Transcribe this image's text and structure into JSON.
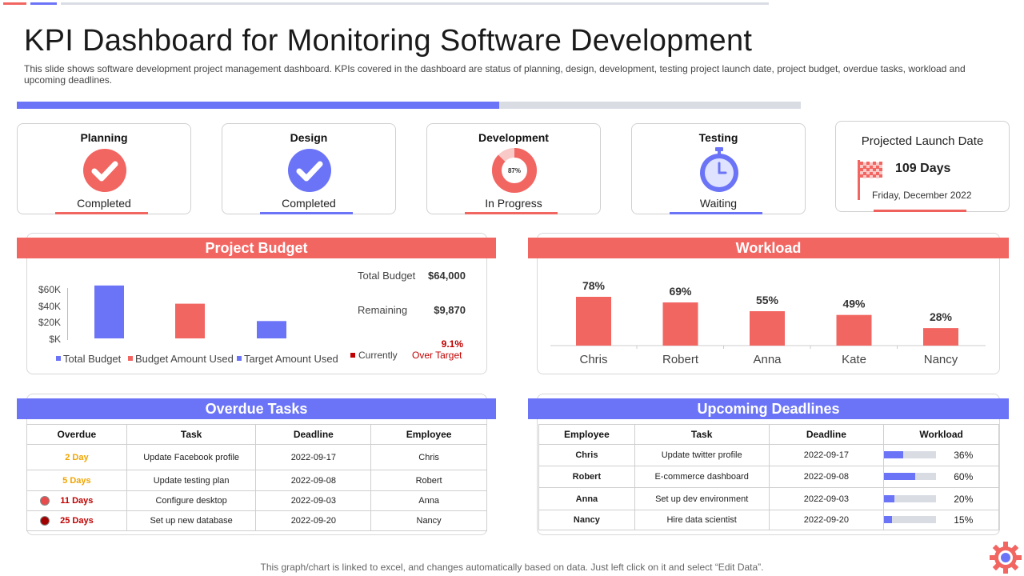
{
  "header": {
    "title": "KPI Dashboard for Monitoring Software Development",
    "subtitle": "This slide shows software development project management dashboard. KPIs covered in the dashboard are status of planning, design, development, testing project launch date, project budget, overdue tasks, workload and upcoming deadlines.",
    "overall_progress_fraction": 0.615
  },
  "status_cards": [
    {
      "label": "Planning",
      "state": "Completed",
      "icon": "check-circle-icon",
      "color": "#f26662"
    },
    {
      "label": "Design",
      "state": "Completed",
      "icon": "check-circle-icon",
      "color": "#6b74f7"
    },
    {
      "label": "Development",
      "state": "In Progress",
      "icon": "donut-progress-icon",
      "color": "#f26662",
      "progress_text": "87%",
      "progress": 0.87
    },
    {
      "label": "Testing",
      "state": "Waiting",
      "icon": "stopwatch-icon",
      "color": "#6b74f7"
    }
  ],
  "launch": {
    "title": "Projected Launch Date",
    "days": "109 Days",
    "date": "Friday, December 2022",
    "icon": "checkered-flag-icon"
  },
  "budget": {
    "title": "Project Budget",
    "axis_ticks": [
      "$60K",
      "$40K",
      "$20K",
      "$K"
    ],
    "total_label": "Total Budget",
    "total_value": "$64,000",
    "remaining_label": "Remaining",
    "remaining_value": "$9,870",
    "over_pct": "9.1%",
    "currently_label": "Currently",
    "over_label": "Over Target",
    "legend": [
      {
        "label": "Total Budget",
        "color": "#6b74f7"
      },
      {
        "label": "Budget Amount Used",
        "color": "#f26662"
      },
      {
        "label": "Target Amount Used",
        "color": "#6b74f7"
      }
    ]
  },
  "chart_data": [
    {
      "type": "bar",
      "categories": [
        "Total Budget",
        "Budget Amount Used",
        "Target Amount Used"
      ],
      "values": [
        64000,
        42000,
        21000
      ],
      "ylim": [
        0,
        70000
      ],
      "ylabel": "",
      "xlabel": "",
      "colors": [
        "#6b74f7",
        "#f26662",
        "#6b74f7"
      ]
    },
    {
      "type": "bar",
      "title": "Workload",
      "categories": [
        "Chris",
        "Robert",
        "Anna",
        "Kate",
        "Nancy"
      ],
      "values": [
        78,
        69,
        55,
        49,
        28
      ],
      "labels": [
        "78%",
        "69%",
        "55%",
        "49%",
        "28%"
      ],
      "ylim": [
        0,
        100
      ],
      "colors": [
        "#f26662"
      ]
    }
  ],
  "workload": {
    "title": "Workload"
  },
  "overdue": {
    "title": "Overdue Tasks",
    "headers": [
      "Overdue",
      "Task",
      "Deadline",
      "Employee"
    ],
    "rows": [
      {
        "overdue": "2 Day",
        "task": "Update Facebook profile",
        "deadline": "2022-09-17",
        "employee": "Chris",
        "color": "#f0a500",
        "dot": ""
      },
      {
        "overdue": "5 Days",
        "task": "Update testing plan",
        "deadline": "2022-09-08",
        "employee": "Robert",
        "color": "#f0a500",
        "dot": ""
      },
      {
        "overdue": "11 Days",
        "task": "Configure desktop",
        "deadline": "2022-09-03",
        "employee": "Anna",
        "color": "#c00000",
        "dot": "#e84b4b"
      },
      {
        "overdue": "25 Days",
        "task": "Set up new database",
        "deadline": "2022-09-20",
        "employee": "Nancy",
        "color": "#c00000",
        "dot": "#a00000"
      }
    ]
  },
  "deadlines": {
    "title": "Upcoming Deadlines",
    "headers": [
      "Employee",
      "Task",
      "Deadline",
      "Workload"
    ],
    "rows": [
      {
        "employee": "Chris",
        "task": "Update twitter profile",
        "deadline": "2022-09-17",
        "workload": "36%",
        "fraction": 0.36
      },
      {
        "employee": "Robert",
        "task": "E-commerce dashboard",
        "deadline": "2022-09-08",
        "workload": "60%",
        "fraction": 0.6
      },
      {
        "employee": "Anna",
        "task": "Set up dev environment",
        "deadline": "2022-09-03",
        "workload": "20%",
        "fraction": 0.2
      },
      {
        "employee": "Nancy",
        "task": "Hire data scientist",
        "deadline": "2022-09-20",
        "workload": "15%",
        "fraction": 0.15
      }
    ]
  },
  "footnote": "This graph/chart is linked to excel,  and changes automatically based on data. Just left click on it and select “Edit Data”."
}
